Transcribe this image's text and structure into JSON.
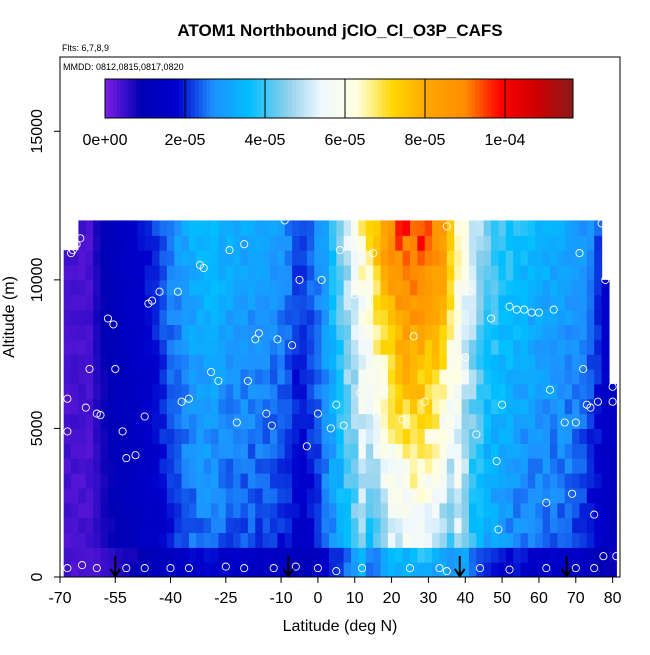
{
  "chart_data": {
    "type": "heatmap",
    "title": "ATOM1 Northbound jClO_Cl_O3P_CAFS",
    "flights_label": "Flts: 6,7,8,9",
    "dates_label": "MMDD: 0812,0815,0817,0820",
    "xlabel": "Latitude (deg N)",
    "ylabel": "Altitude (m)",
    "xlim": [
      -70,
      82
    ],
    "ylim": [
      0,
      17500
    ],
    "xticks": [
      -70,
      -55,
      -40,
      -25,
      -10,
      0,
      10,
      20,
      30,
      40,
      50,
      60,
      70,
      80
    ],
    "xtick_labels": [
      "-70",
      "-55",
      "-40",
      "-25",
      "-10",
      "0",
      "10",
      "20",
      "30",
      "40",
      "50",
      "60",
      "70",
      "80"
    ],
    "yticks": [
      0,
      5000,
      10000,
      15000
    ],
    "ytick_labels": [
      "0",
      "5000",
      "10000",
      "15000"
    ],
    "colorbar": {
      "min": 0,
      "max": 0.000117,
      "ticks": [
        0,
        2e-05,
        4e-05,
        6e-05,
        8e-05,
        0.0001
      ],
      "tick_labels": [
        "0e+00",
        "2e-05",
        "4e-05",
        "6e-05",
        "8e-05",
        "1e-04"
      ],
      "colors": [
        "#7f1fe6",
        "#0000b4",
        "#0000cd",
        "#1e90ff",
        "#00bfff",
        "#87ceeb",
        "#f0f8ff",
        "#ffffe0",
        "#ffd700",
        "#ffa500",
        "#ff8c00",
        "#ff0000",
        "#cd0000",
        "#8b1a1a"
      ]
    },
    "profile": {
      "lat": [
        -68,
        -62,
        -56,
        -50,
        -45,
        -40,
        -35,
        -30,
        -25,
        -20,
        -15,
        -10,
        -6,
        -2,
        2,
        6,
        10,
        14,
        18,
        22,
        26,
        30,
        34,
        38,
        41,
        45,
        50,
        55,
        60,
        65,
        70,
        74,
        78
      ],
      "value_1e5": [
        0.5,
        0.6,
        1.2,
        1.6,
        2.0,
        2.6,
        3.1,
        3.3,
        3.0,
        2.9,
        2.8,
        2.6,
        2.0,
        2.4,
        3.2,
        4.4,
        5.6,
        6.8,
        8.1,
        8.9,
        9.1,
        8.7,
        7.6,
        5.8,
        4.8,
        4.0,
        3.6,
        3.3,
        3.1,
        3.0,
        2.8,
        2.3,
        1.6
      ]
    },
    "top_altitude_m": 12000,
    "profile_legs": [
      {
        "lat": -55,
        "altitude_m": 0
      },
      {
        "lat": -8,
        "altitude_m": 0
      },
      {
        "lat": 38.5,
        "altitude_m": 0
      },
      {
        "lat": 67.5,
        "altitude_m": 0
      }
    ],
    "samples": [
      [
        -68,
        4900
      ],
      [
        -68,
        6000
      ],
      [
        -67,
        10900
      ],
      [
        -66.5,
        11000
      ],
      [
        -65.5,
        11200
      ],
      [
        -64.5,
        11400
      ],
      [
        -63,
        5700
      ],
      [
        -62,
        7000
      ],
      [
        -60,
        5500
      ],
      [
        -59,
        5450
      ],
      [
        -57,
        8700
      ],
      [
        -55.5,
        8500
      ],
      [
        -55,
        7000
      ],
      [
        -53,
        4900
      ],
      [
        -52,
        4000
      ],
      [
        -49.5,
        4100
      ],
      [
        -47,
        5400
      ],
      [
        -46,
        9200
      ],
      [
        -45,
        9300
      ],
      [
        -43,
        9600
      ],
      [
        -38,
        9600
      ],
      [
        -37,
        5900
      ],
      [
        -35,
        6000
      ],
      [
        -32,
        10500
      ],
      [
        -31,
        10400
      ],
      [
        -29,
        6900
      ],
      [
        -27,
        6600
      ],
      [
        -24,
        11000
      ],
      [
        -22,
        5200
      ],
      [
        -20,
        11200
      ],
      [
        -19,
        6600
      ],
      [
        -17,
        8000
      ],
      [
        -16,
        8200
      ],
      [
        -14,
        5500
      ],
      [
        -12.5,
        5100
      ],
      [
        -11,
        8000
      ],
      [
        -9,
        12000
      ],
      [
        -7,
        7800
      ],
      [
        -5,
        10000
      ],
      [
        -3,
        4400
      ],
      [
        0,
        5500
      ],
      [
        1,
        10000
      ],
      [
        3.5,
        5000
      ],
      [
        5,
        5800
      ],
      [
        6,
        11000
      ],
      [
        7,
        5100
      ],
      [
        10,
        9500
      ],
      [
        11.5,
        6200
      ],
      [
        15,
        10900
      ],
      [
        16,
        5500
      ],
      [
        18,
        6300
      ],
      [
        23,
        5300
      ],
      [
        26,
        8100
      ],
      [
        29,
        5900
      ],
      [
        30.5,
        4700
      ],
      [
        35,
        11800
      ],
      [
        36,
        5200
      ],
      [
        40,
        7400
      ],
      [
        41,
        9600
      ],
      [
        43,
        4800
      ],
      [
        47,
        8700
      ],
      [
        48.5,
        3900
      ],
      [
        49,
        1600
      ],
      [
        50,
        5800
      ],
      [
        52,
        9100
      ],
      [
        54,
        9000
      ],
      [
        56,
        9000
      ],
      [
        58,
        8900
      ],
      [
        60,
        8900
      ],
      [
        62,
        2500
      ],
      [
        63,
        6300
      ],
      [
        64,
        9000
      ],
      [
        67,
        5200
      ],
      [
        69,
        2800
      ],
      [
        70,
        5200
      ],
      [
        71,
        10900
      ],
      [
        72,
        7000
      ],
      [
        73,
        5800
      ],
      [
        74,
        5700
      ],
      [
        75,
        2100
      ],
      [
        76,
        5900
      ],
      [
        77,
        11900
      ],
      [
        77.5,
        700
      ],
      [
        78,
        10000
      ],
      [
        79,
        10800
      ],
      [
        80,
        6400
      ],
      [
        80,
        5900
      ],
      [
        81,
        700
      ],
      [
        -68,
        300
      ],
      [
        -64,
        400
      ],
      [
        -60,
        300
      ],
      [
        -52,
        300
      ],
      [
        -47,
        300
      ],
      [
        -40,
        300
      ],
      [
        -35,
        300
      ],
      [
        -25,
        350
      ],
      [
        -20,
        300
      ],
      [
        -12,
        300
      ],
      [
        -6,
        350
      ],
      [
        0,
        300
      ],
      [
        5,
        200
      ],
      [
        12,
        300
      ],
      [
        25,
        300
      ],
      [
        33,
        300
      ],
      [
        35,
        200
      ],
      [
        44,
        300
      ],
      [
        52,
        250
      ],
      [
        62,
        300
      ],
      [
        70,
        300
      ],
      [
        75,
        300
      ]
    ]
  }
}
